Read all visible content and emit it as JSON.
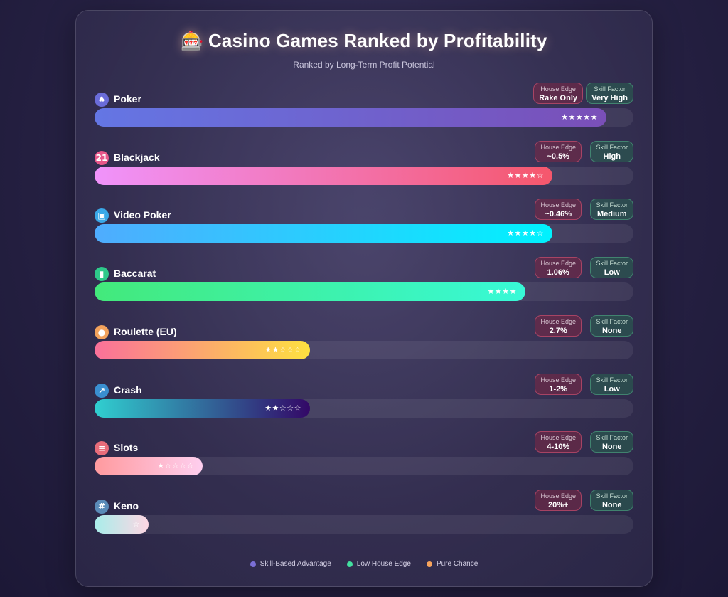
{
  "title_emoji": "🎰",
  "title": "Casino Games Ranked by Profitability",
  "subtitle": "Ranked by Long-Term Profit Potential",
  "chart_data": {
    "type": "bar",
    "orientation": "horizontal",
    "categories": [
      "Poker",
      "Blackjack",
      "Video Poker",
      "Baccarat",
      "Roulette (EU)",
      "Crash",
      "Slots",
      "Keno"
    ],
    "values": [
      95,
      85,
      85,
      80,
      40,
      40,
      20,
      10
    ],
    "xlim": [
      0,
      100
    ],
    "items": [
      {
        "name": "Poker",
        "icon": "spade-icon",
        "icon_glyph": "♠",
        "icon_color": "#6a6cd8",
        "house_edge": "Rake Only",
        "skill_factor": "Very High",
        "score": 95,
        "stars": "★★★★★",
        "gradient": [
          "#6476e4",
          "#7a4fb8"
        ]
      },
      {
        "name": "Blackjack",
        "icon": "21-icon",
        "icon_glyph": "21",
        "icon_color": "#e8578a",
        "house_edge": "~0.5%",
        "skill_factor": "High",
        "score": 85,
        "stars": "★★★★☆",
        "gradient": [
          "#f093fb",
          "#f5576c"
        ]
      },
      {
        "name": "Video Poker",
        "icon": "video-poker-machine-icon",
        "icon_glyph": "▣",
        "icon_color": "#3aa8e8",
        "house_edge": "~0.46%",
        "skill_factor": "Medium",
        "score": 85,
        "stars": "★★★★☆",
        "gradient": [
          "#4facfe",
          "#00f2fe"
        ]
      },
      {
        "name": "Baccarat",
        "icon": "card-icon",
        "icon_glyph": "▮",
        "icon_color": "#2ec98a",
        "house_edge": "1.06%",
        "skill_factor": "Low",
        "score": 80,
        "stars": "★★★★",
        "gradient": [
          "#43e97b",
          "#38f9d7"
        ]
      },
      {
        "name": "Roulette (EU)",
        "icon": "roulette-wheel-icon",
        "icon_glyph": "●",
        "icon_color": "#f2a25c",
        "house_edge": "2.7%",
        "skill_factor": "None",
        "score": 40,
        "stars": "★★☆☆☆",
        "gradient": [
          "#fa709a",
          "#fee140"
        ]
      },
      {
        "name": "Crash",
        "icon": "chart-up-icon",
        "icon_glyph": "↗",
        "icon_color": "#3a8fd0",
        "house_edge": "1-2%",
        "skill_factor": "Low",
        "score": 40,
        "stars": "★★☆☆☆",
        "gradient": [
          "#30cfd0",
          "#330867"
        ]
      },
      {
        "name": "Slots",
        "icon": "slot-machine-icon",
        "icon_glyph": "≡",
        "icon_color": "#e86c7a",
        "house_edge": "4-10%",
        "skill_factor": "None",
        "score": 20,
        "stars": "★☆☆☆☆",
        "gradient": [
          "#ff9a9e",
          "#fecfef"
        ]
      },
      {
        "name": "Keno",
        "icon": "number-grid-icon",
        "icon_glyph": "#",
        "icon_color": "#5a8bb8",
        "house_edge": "20%+",
        "skill_factor": "None",
        "score": 10,
        "stars": "☆",
        "gradient": [
          "#a8edea",
          "#fed6e3"
        ]
      }
    ],
    "badge_labels": {
      "house_edge": "House Edge",
      "skill_factor": "Skill Factor"
    },
    "legend": [
      {
        "label": "Skill-Based Advantage",
        "color": "#7b6fd6"
      },
      {
        "label": "Low House Edge",
        "color": "#43e0a0"
      },
      {
        "label": "Pure Chance",
        "color": "#f7a45c"
      }
    ]
  }
}
